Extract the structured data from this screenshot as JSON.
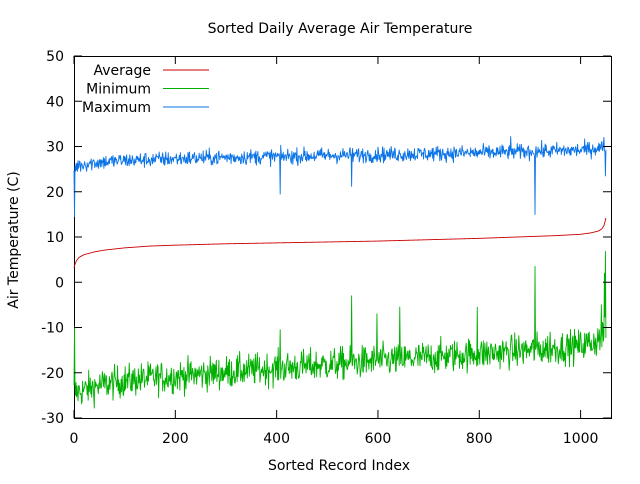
{
  "chart_data": {
    "type": "line",
    "title": "Sorted Daily Average Air Temperature",
    "xlabel": "Sorted Record Index",
    "ylabel": "Air Temperature (C)",
    "xlim": [
      0,
      1060
    ],
    "ylim": [
      -30,
      50
    ],
    "xticks": [
      0,
      200,
      400,
      600,
      800,
      1000
    ],
    "yticks": [
      -30,
      -20,
      -10,
      0,
      10,
      20,
      30,
      40,
      50
    ],
    "legend_position": "top-left",
    "grid": false,
    "n_points": 1050,
    "series": [
      {
        "name": "Average",
        "color": "#cc0000",
        "x": [
          0,
          2,
          5,
          10,
          20,
          40,
          60,
          100,
          150,
          200,
          300,
          400,
          500,
          600,
          700,
          800,
          850,
          900,
          950,
          1000,
          1020,
          1035,
          1042,
          1046,
          1048,
          1050
        ],
        "values": [
          3.2,
          4.0,
          4.8,
          5.5,
          6.1,
          6.7,
          7.1,
          7.6,
          8.0,
          8.2,
          8.5,
          8.7,
          8.9,
          9.1,
          9.4,
          9.7,
          9.9,
          10.1,
          10.3,
          10.6,
          10.9,
          11.3,
          11.8,
          12.5,
          13.3,
          14.2
        ]
      },
      {
        "name": "Minimum",
        "color": "#00b000",
        "x": [
          0,
          20,
          50,
          100,
          150,
          200,
          250,
          300,
          350,
          400,
          450,
          500,
          550,
          600,
          650,
          700,
          750,
          800,
          850,
          900,
          950,
          1000,
          1030,
          1050
        ],
        "values": [
          -24.5,
          -23.8,
          -22.8,
          -21.8,
          -21.2,
          -20.8,
          -20.3,
          -19.9,
          -19.4,
          -19.0,
          -18.6,
          -18.2,
          -17.8,
          -17.4,
          -17.0,
          -16.6,
          -16.2,
          -15.8,
          -15.4,
          -15.0,
          -14.6,
          -14.0,
          -13.0,
          -11.5
        ],
        "notable": {
          "x": [
            1,
            407,
            548,
            598,
            643,
            796,
            910,
            940,
            1041,
            1047,
            1049
          ],
          "values": [
            -9.8,
            -10.5,
            -3.0,
            -7.0,
            -5.5,
            -5.5,
            3.5,
            -11.0,
            -5.0,
            2.0,
            6.8
          ]
        }
      },
      {
        "name": "Maximum",
        "color": "#0a73e8",
        "x": [
          0,
          3,
          10,
          30,
          60,
          100,
          150,
          200,
          300,
          400,
          500,
          600,
          700,
          800,
          900,
          1000,
          1030,
          1050
        ],
        "values": [
          24.5,
          25.5,
          25.9,
          26.3,
          26.6,
          26.9,
          27.1,
          27.3,
          27.6,
          27.8,
          28.0,
          28.2,
          28.4,
          28.6,
          28.9,
          29.2,
          29.6,
          29.8
        ],
        "notable": {
          "x": [
            1,
            407,
            548,
            862,
            910,
            1046,
            1049
          ],
          "values": [
            14.5,
            19.5,
            21.2,
            32.2,
            15.0,
            32.0,
            23.5
          ]
        }
      }
    ]
  }
}
